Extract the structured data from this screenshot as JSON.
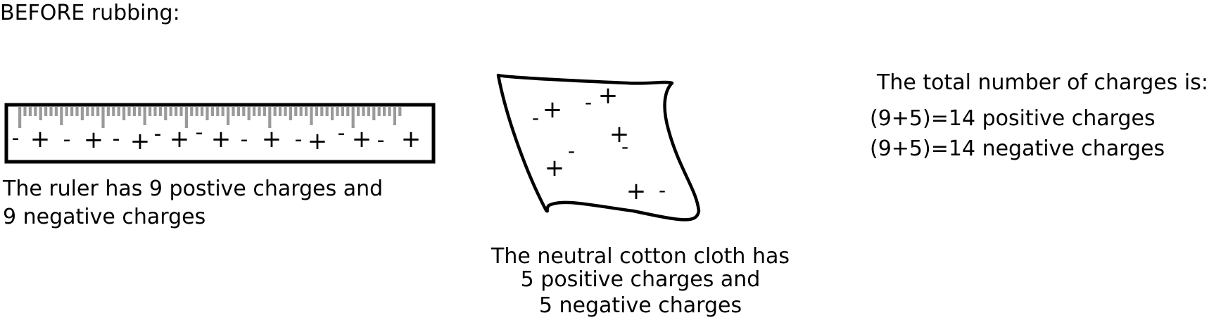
{
  "heading": "BEFORE rubbing:",
  "ruler": {
    "charges": [
      "-",
      "+",
      "-",
      "+",
      "-",
      "+",
      "-",
      "+",
      "-",
      "+",
      "-",
      "+",
      "-",
      "+",
      "-",
      "+",
      "-",
      "+"
    ],
    "caption_lines": [
      "The ruler has 9 postive charges and",
      "9 negative charges"
    ]
  },
  "cloth": {
    "charges": [
      "-",
      "+",
      "-",
      "+",
      "+",
      "-",
      "+",
      "-",
      "+",
      "-"
    ],
    "caption_lines": [
      "The neutral cotton cloth has",
      "5 positive charges and",
      "5 negative charges"
    ]
  },
  "totals": {
    "title": "The total number of charges is:",
    "lines": [
      "(9+5)=14 positive charges",
      "(9+5)=14 negative charges"
    ]
  }
}
